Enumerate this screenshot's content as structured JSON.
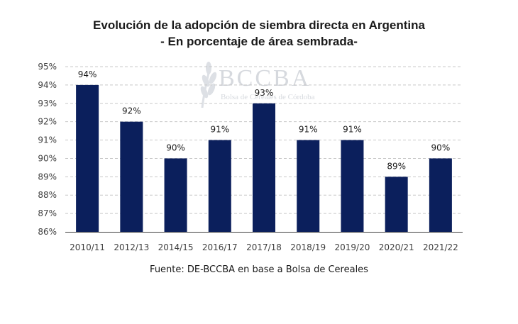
{
  "chart_data": {
    "type": "bar",
    "title": "Evolución de la adopción de siembra directa en Argentina",
    "subtitle": "- En porcentaje de área sembrada-",
    "categories": [
      "2010/11",
      "2012/13",
      "2014/15",
      "2016/17",
      "2017/18",
      "2018/19",
      "2019/20",
      "2020/21",
      "2021/22"
    ],
    "values": [
      94,
      92,
      90,
      91,
      93,
      91,
      91,
      89,
      90
    ],
    "value_labels": [
      "94%",
      "92%",
      "90%",
      "91%",
      "93%",
      "91%",
      "91%",
      "89%",
      "90%"
    ],
    "ylim": [
      86,
      95
    ],
    "yticks": [
      86,
      87,
      88,
      89,
      90,
      91,
      92,
      93,
      94,
      95
    ],
    "ytick_labels": [
      "86%",
      "87%",
      "88%",
      "89%",
      "90%",
      "91%",
      "92%",
      "93%",
      "94%",
      "95%"
    ],
    "xlabel": "",
    "ylabel": "",
    "grid": true,
    "legend": "none",
    "bar_color": "#0b1f5c",
    "gridline_color": "#c8c8c8",
    "source": "Fuente: DE-BCCBA en base a Bolsa de Cereales"
  },
  "watermark": {
    "name": "BCCBA",
    "subtitle": "Bolsa de Cereales de Córdoba",
    "icon": "wheat-ear-icon"
  }
}
